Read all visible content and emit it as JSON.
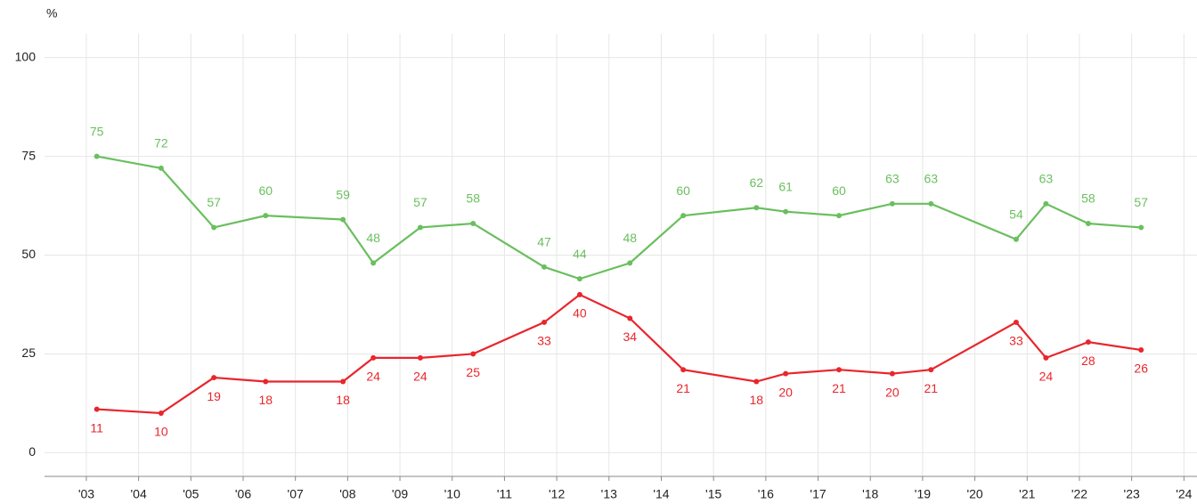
{
  "chart_data": {
    "type": "line",
    "y_label": "%",
    "x": [
      2003.2,
      2004.43,
      2005.44,
      2006.43,
      2007.91,
      2008.49,
      2009.39,
      2010.4,
      2011.76,
      2012.44,
      2013.4,
      2014.42,
      2015.82,
      2016.38,
      2017.4,
      2018.42,
      2019.16,
      2020.79,
      2021.36,
      2022.17,
      2023.18
    ],
    "series": [
      {
        "color": "#6abf5e",
        "values": [
          75,
          72,
          57,
          60,
          59,
          48,
          57,
          58,
          47,
          44,
          48,
          60,
          62,
          61,
          60,
          63,
          63,
          54,
          63,
          58,
          57
        ]
      },
      {
        "color": "#e8262c",
        "values": [
          11,
          10,
          19,
          18,
          18,
          24,
          24,
          25,
          33,
          40,
          34,
          21,
          18,
          20,
          21,
          20,
          21,
          33,
          24,
          28,
          26
        ]
      }
    ],
    "xlim": [
      2002.2,
      2024.25
    ],
    "xticks": [
      {
        "value": 2003,
        "label": "'03"
      },
      {
        "value": 2004,
        "label": "'04"
      },
      {
        "value": 2005,
        "label": "'05"
      },
      {
        "value": 2006,
        "label": "'06"
      },
      {
        "value": 2007,
        "label": "'07"
      },
      {
        "value": 2008,
        "label": "'08"
      },
      {
        "value": 2009,
        "label": "'09"
      },
      {
        "value": 2010,
        "label": "'10"
      },
      {
        "value": 2011,
        "label": "'11"
      },
      {
        "value": 2012,
        "label": "'12"
      },
      {
        "value": 2013,
        "label": "'13"
      },
      {
        "value": 2014,
        "label": "'14"
      },
      {
        "value": 2015,
        "label": "'15"
      },
      {
        "value": 2016,
        "label": "'16"
      },
      {
        "value": 2017,
        "label": "'17"
      },
      {
        "value": 2018,
        "label": "'18"
      },
      {
        "value": 2019,
        "label": "'19"
      },
      {
        "value": 2020,
        "label": "'20"
      },
      {
        "value": 2021,
        "label": "'21"
      },
      {
        "value": 2022,
        "label": "'22"
      },
      {
        "value": 2023,
        "label": "'23"
      },
      {
        "value": 2024,
        "label": "'24"
      }
    ],
    "ylim": [
      -6,
      106
    ],
    "yticks": [
      0,
      25,
      50,
      75,
      100
    ],
    "grid": true
  }
}
